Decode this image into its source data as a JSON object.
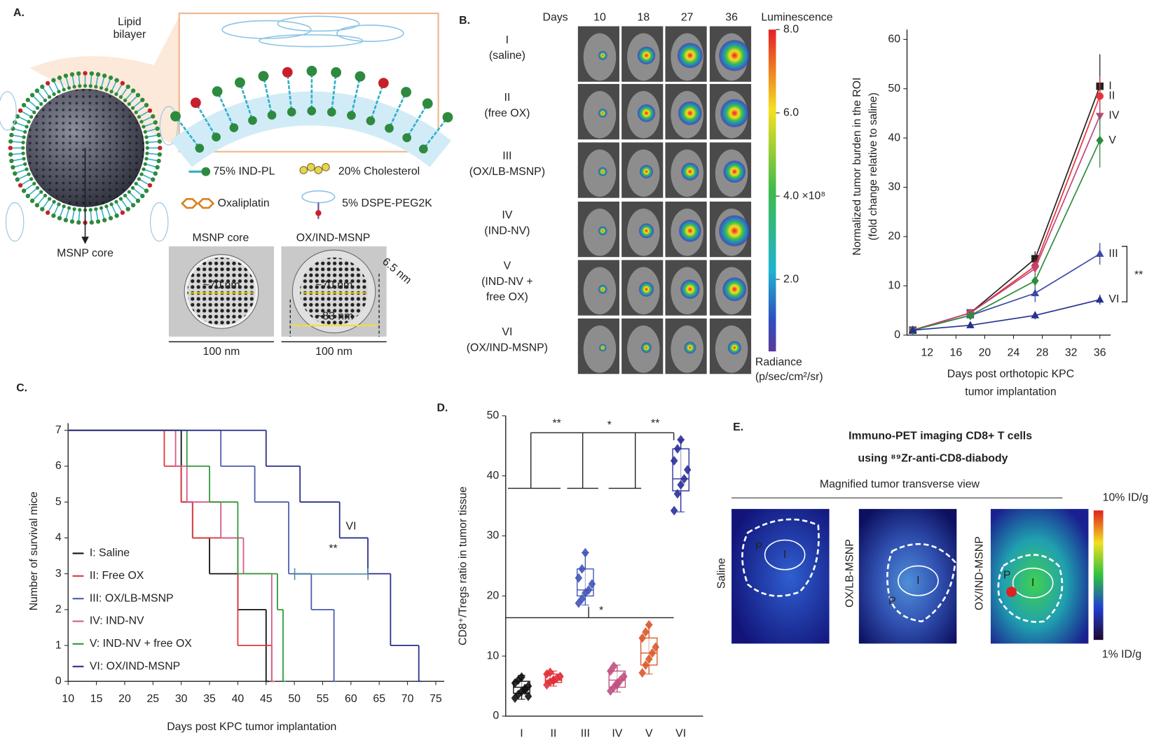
{
  "panel_a": {
    "label": "A.",
    "lipid_bilayer": [
      "Lipid",
      "bilayer"
    ],
    "msnp_core": "MSNP core",
    "legend": [
      "75% IND-PL",
      "20% Cholesterol",
      "Oxaliplatin",
      "5% DSPE-PEG2K"
    ],
    "tem": [
      {
        "title": "MSNP core",
        "sizes": [
          "~70 nm"
        ],
        "scale": "100 nm"
      },
      {
        "title": "OX/IND-MSNP",
        "sizes": [
          "~70 nm",
          "~83 nm",
          "6.5 nm"
        ],
        "scale": "100 nm"
      }
    ]
  },
  "panel_b": {
    "label": "B.",
    "days_label": "Days",
    "days": [
      10,
      18,
      27,
      36
    ],
    "groups": [
      [
        "I",
        "(saline)"
      ],
      [
        "II",
        "(free OX)"
      ],
      [
        "III",
        "(OX/LB-MSNP)"
      ],
      [
        "IV",
        "(IND-NV)"
      ],
      [
        "V",
        "(IND-NV +",
        "free OX)"
      ],
      [
        "VI",
        "(OX/IND-MSNP)"
      ]
    ],
    "colorbar": {
      "title": "Luminescence",
      "clim": [
        0.27,
        8.0
      ],
      "ticks": [
        {
          "value": 8,
          "label": "8.0"
        },
        {
          "value": 6,
          "label": "6.0"
        },
        {
          "value": 4,
          "label": "4.0 ×10⁸"
        },
        {
          "value": 2,
          "label": "2.0"
        }
      ],
      "unit": [
        "Radiance",
        "(p/sec/cm²/sr)"
      ]
    }
  },
  "chart_data": [
    {
      "type": "line",
      "ylabel": [
        "Normalized tumor burden in the ROI",
        "(fold change relative to saline)"
      ],
      "xlabel": [
        "Days post orthotopic KPC",
        "tumor implantation"
      ],
      "x": [
        10,
        18,
        27,
        36
      ],
      "xlim": [
        9.2,
        37.5
      ],
      "xticks": [
        12,
        16,
        20,
        24,
        28,
        32,
        36
      ],
      "ylim": [
        0,
        62
      ],
      "yticks": [
        0,
        10,
        20,
        30,
        40,
        50,
        60
      ],
      "annotations": [
        "**"
      ],
      "series": [
        {
          "name": "I",
          "color": "#222222",
          "marker": "square",
          "values": [
            1,
            4.5,
            15.5,
            50.5
          ],
          "errors": [
            0.3,
            0.5,
            1.5,
            6.5
          ]
        },
        {
          "name": "II",
          "color": "#e8303a",
          "marker": "circle",
          "values": [
            1,
            4.5,
            14,
            48.5
          ],
          "errors": [
            0.3,
            0.5,
            1.2,
            4
          ]
        },
        {
          "name": "III",
          "color": "#3b4aa8",
          "marker": "triangle-up",
          "values": [
            1,
            4,
            8.5,
            16.5
          ],
          "errors": [
            0.3,
            0.5,
            1.8,
            2.2
          ]
        },
        {
          "name": "IV",
          "color": "#c2447a",
          "marker": "triangle-down",
          "values": [
            1,
            4.5,
            13.5,
            44.5
          ],
          "errors": [
            0.3,
            0.5,
            1.3,
            3
          ]
        },
        {
          "name": "V",
          "color": "#2e8b3e",
          "marker": "diamond",
          "values": [
            1,
            4,
            11,
            39.5
          ],
          "errors": [
            0.3,
            0.5,
            1.5,
            5.5
          ]
        },
        {
          "name": "VI",
          "color": "#25308f",
          "marker": "triangle-up",
          "values": [
            1,
            2,
            4,
            7.2
          ],
          "errors": [
            0.3,
            0.4,
            0.8,
            1
          ]
        }
      ]
    },
    {
      "type": "step",
      "panel_label": "C.",
      "ylabel": "Number of survival mice",
      "xlabel": "Days post KPC tumor implantation",
      "xlim": [
        10,
        76.5
      ],
      "xticks": [
        10,
        15,
        20,
        25,
        30,
        35,
        40,
        45,
        50,
        55,
        60,
        65,
        70,
        75
      ],
      "ylim": [
        0,
        7.2
      ],
      "yticks": [
        0,
        1,
        2,
        3,
        4,
        5,
        6,
        7
      ],
      "annotations": [
        "VI",
        "**"
      ],
      "series": [
        {
          "name": "I: Saline",
          "color": "#111111",
          "x": [
            10,
            30,
            32,
            35,
            40,
            45
          ],
          "values": [
            7,
            5,
            4,
            3,
            2,
            0
          ]
        },
        {
          "name": "II: Free OX",
          "color": "#e0383e",
          "x": [
            10,
            27,
            30,
            32,
            40,
            46
          ],
          "values": [
            7,
            6,
            5,
            4,
            1,
            0
          ]
        },
        {
          "name": "III: OX/LB-MSNP",
          "color": "#4b5cb0",
          "x": [
            10,
            37,
            43,
            49,
            53,
            57
          ],
          "values": [
            7,
            6,
            5,
            3,
            2,
            0
          ]
        },
        {
          "name": "IV: IND-NV",
          "color": "#d45a8c",
          "x": [
            10,
            29,
            31,
            37,
            41,
            46
          ],
          "values": [
            7,
            6,
            5,
            4,
            3,
            0
          ]
        },
        {
          "name": "V: IND-NV + free OX",
          "color": "#2e9a3c",
          "x": [
            10,
            31,
            35,
            40,
            47,
            48
          ],
          "values": [
            7,
            6,
            5,
            3,
            2,
            0
          ]
        },
        {
          "name": "VI: OX/IND-MSNP",
          "color": "#2a2f8c",
          "x": [
            10,
            45,
            51,
            58,
            63,
            67,
            72
          ],
          "values": [
            7,
            6,
            5,
            4,
            3,
            1,
            0
          ]
        }
      ]
    },
    {
      "type": "box",
      "panel_label": "D.",
      "ylabel": "CD8⁺/Tregs ratio in tumor tissue",
      "categories": [
        "I",
        "II",
        "III",
        "IV",
        "V",
        "VI"
      ],
      "ylim": [
        0,
        50
      ],
      "yticks": [
        0,
        10,
        20,
        30,
        40,
        50
      ],
      "colors": [
        "#111111",
        "#e0303a",
        "#3f54b8",
        "#c0507f",
        "#d9592a",
        "#2b2f9a"
      ],
      "annotations": [
        "**",
        "*",
        "**",
        "*"
      ],
      "boxes": [
        {
          "min": 2.8,
          "q1": 3.8,
          "median": 4.8,
          "q3": 5.8,
          "max": 6.8
        },
        {
          "min": 5,
          "q1": 5.6,
          "median": 6,
          "q3": 7,
          "max": 7.5
        },
        {
          "min": 18.5,
          "q1": 20,
          "median": 21,
          "q3": 24.5,
          "max": 27.2
        },
        {
          "min": 4,
          "q1": 4.8,
          "median": 6,
          "q3": 7.5,
          "max": 8.5
        },
        {
          "min": 7,
          "q1": 8.5,
          "median": 10.5,
          "q3": 13,
          "max": 15.2
        },
        {
          "min": 34,
          "q1": 37.5,
          "median": 39.5,
          "q3": 44.5,
          "max": 46
        }
      ],
      "points": [
        [
          3,
          3.6,
          4.1,
          4.6,
          5,
          5.5,
          6,
          6.5,
          4.3,
          3.3
        ],
        [
          5.2,
          5.7,
          6,
          6.3,
          6.6,
          7,
          7.3,
          5.9
        ],
        [
          18.8,
          19.5,
          20.5,
          21,
          22,
          23,
          24.5,
          27.2
        ],
        [
          4.2,
          4.8,
          5.5,
          6,
          6.6,
          7.5,
          8.3,
          5.2
        ],
        [
          7.2,
          8.5,
          9.5,
          10.5,
          11.5,
          13,
          14,
          15.2
        ],
        [
          34.2,
          37,
          38.5,
          39.5,
          41,
          42.5,
          44.5,
          46
        ]
      ]
    }
  ],
  "panel_e": {
    "label": "E.",
    "title": [
      "Immuno-PET imaging CD8+ T cells",
      "using ⁸⁹Zr-anti-CD8-diabody"
    ],
    "subtitle": "Magnified tumor transverse view",
    "images": [
      "Saline",
      "OX/LB-MSNP",
      "OX/IND-MSNP"
    ],
    "markers": [
      "P",
      "I"
    ],
    "scale": [
      "10% ID/g",
      "1% ID/g"
    ]
  }
}
